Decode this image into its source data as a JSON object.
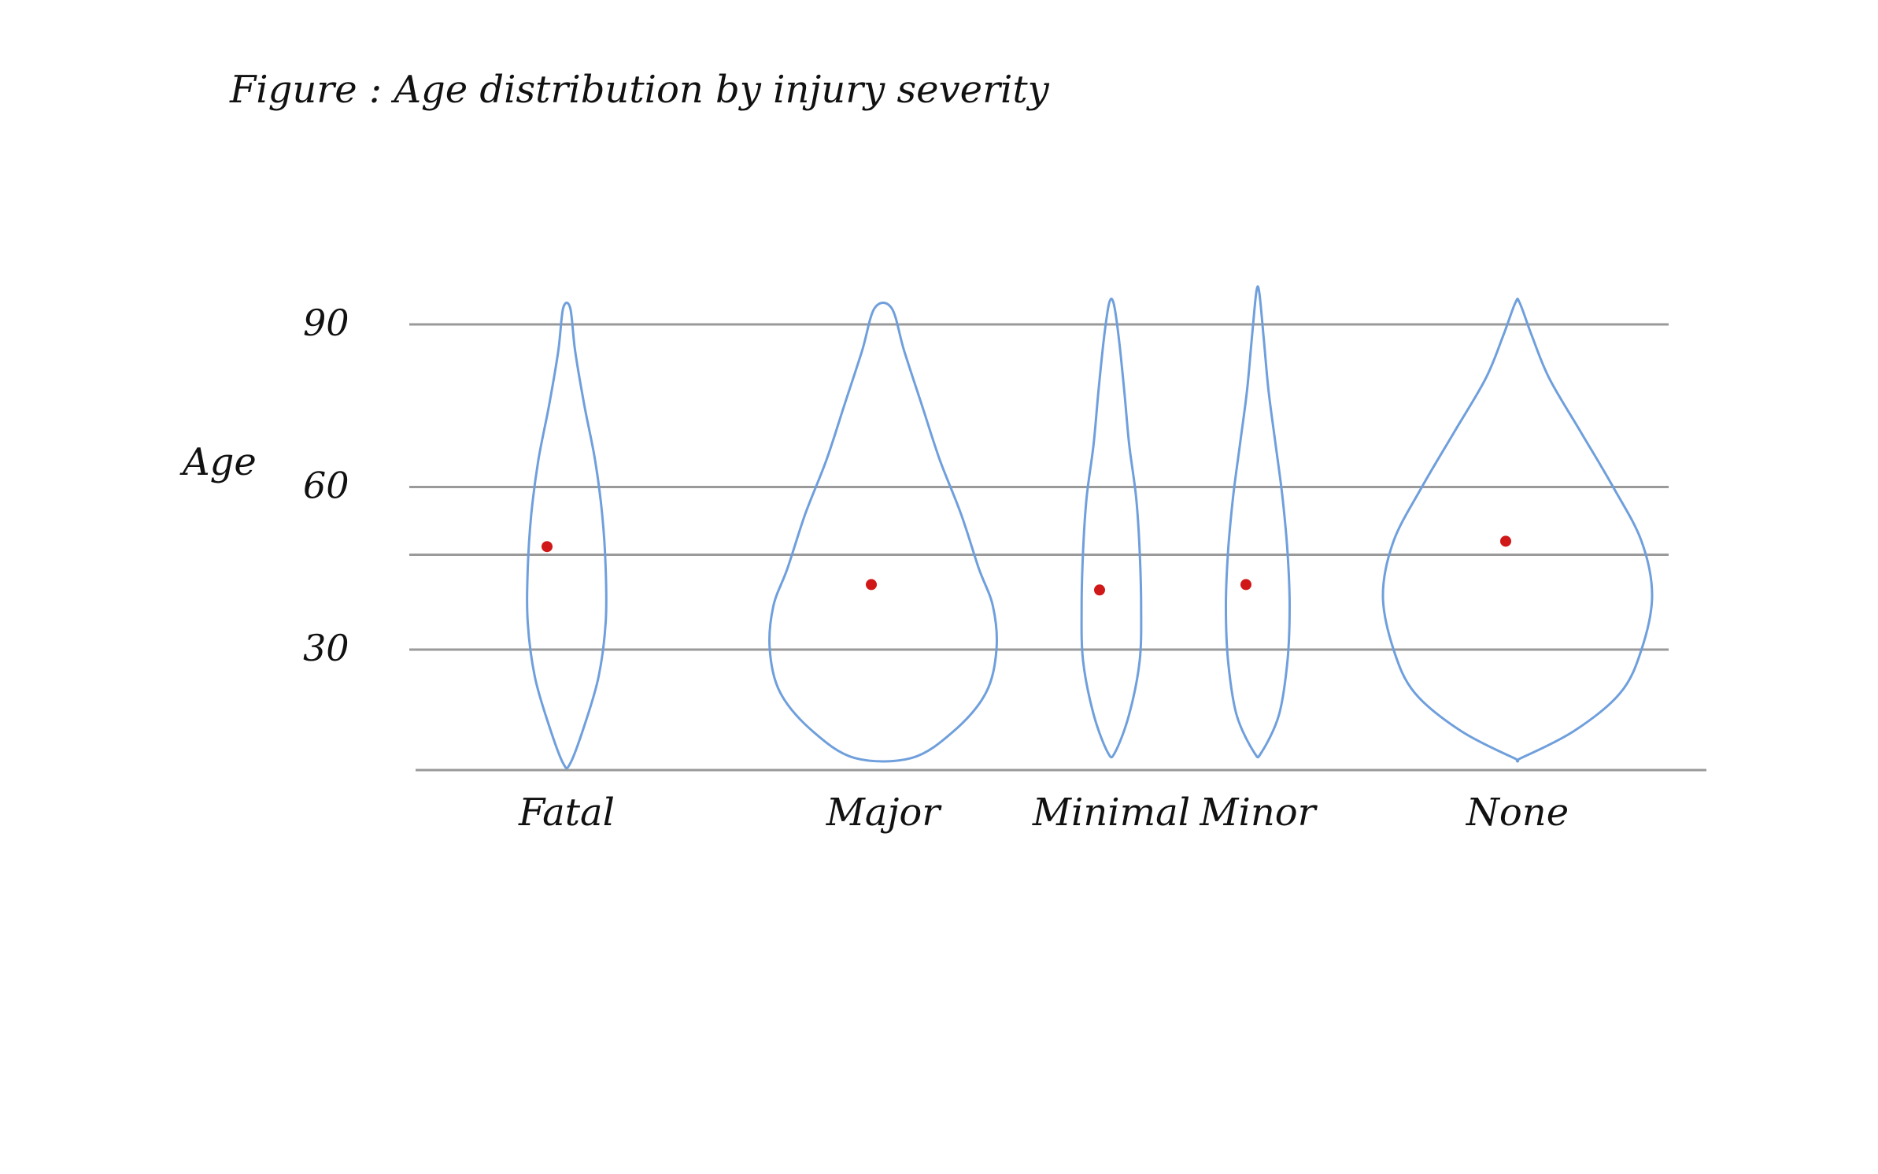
{
  "chart_data": {
    "type": "violin",
    "title": "Figure : Age distribution by injury severity",
    "xlabel": "",
    "ylabel": "Age",
    "yticks": [
      30,
      60,
      90
    ],
    "ylim": [
      8,
      93
    ],
    "grid": true,
    "categories": [
      "Fatal",
      "Major",
      "Minimal",
      "Minor",
      "None"
    ],
    "series": [
      {
        "category": "Fatal",
        "median": 49,
        "min": 9,
        "max": 93,
        "profile": [
          [
            9,
            0.05
          ],
          [
            16,
            0.25
          ],
          [
            25,
            0.45
          ],
          [
            35,
            0.55
          ],
          [
            45,
            0.55
          ],
          [
            55,
            0.5
          ],
          [
            65,
            0.4
          ],
          [
            75,
            0.25
          ],
          [
            85,
            0.12
          ],
          [
            93,
            0.05
          ]
        ]
      },
      {
        "category": "Major",
        "median": 42,
        "min": 10,
        "max": 93,
        "profile": [
          [
            10,
            0.4
          ],
          [
            15,
            1.0
          ],
          [
            22,
            1.45
          ],
          [
            30,
            1.6
          ],
          [
            38,
            1.55
          ],
          [
            45,
            1.35
          ],
          [
            55,
            1.1
          ],
          [
            65,
            0.8
          ],
          [
            75,
            0.55
          ],
          [
            85,
            0.3
          ],
          [
            93,
            0.12
          ]
        ]
      },
      {
        "category": "Minimal",
        "median": 41,
        "min": 11,
        "max": 94,
        "profile": [
          [
            11,
            0.05
          ],
          [
            18,
            0.25
          ],
          [
            28,
            0.4
          ],
          [
            38,
            0.42
          ],
          [
            48,
            0.4
          ],
          [
            58,
            0.35
          ],
          [
            68,
            0.25
          ],
          [
            78,
            0.18
          ],
          [
            88,
            0.1
          ],
          [
            94,
            0.03
          ]
        ]
      },
      {
        "category": "Minor",
        "median": 42,
        "min": 11,
        "max": 96,
        "profile": [
          [
            11,
            0.05
          ],
          [
            18,
            0.3
          ],
          [
            28,
            0.42
          ],
          [
            38,
            0.45
          ],
          [
            48,
            0.42
          ],
          [
            58,
            0.35
          ],
          [
            68,
            0.25
          ],
          [
            78,
            0.15
          ],
          [
            88,
            0.08
          ],
          [
            96,
            0.02
          ]
        ]
      },
      {
        "category": "None",
        "median": 50,
        "min": 10,
        "max": 94,
        "profile": [
          [
            10,
            0.05
          ],
          [
            15,
            0.8
          ],
          [
            22,
            1.45
          ],
          [
            30,
            1.75
          ],
          [
            40,
            1.9
          ],
          [
            50,
            1.75
          ],
          [
            60,
            1.35
          ],
          [
            70,
            0.9
          ],
          [
            80,
            0.45
          ],
          [
            88,
            0.2
          ],
          [
            94,
            0.03
          ]
        ]
      }
    ],
    "colors": {
      "violin_outline": "#6f9fdc",
      "median_dot": "#d01818",
      "gridline": "#9a9a9a",
      "text": "#111111"
    }
  }
}
